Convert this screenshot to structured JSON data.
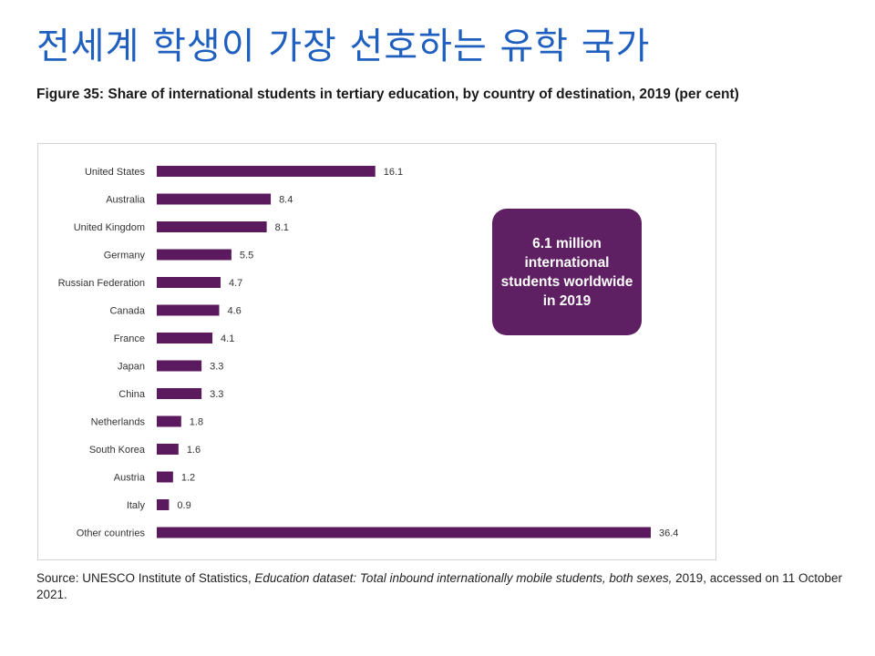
{
  "page": {
    "heading": "전세계 학생이 가장 선호하는 유학 국가"
  },
  "figure": {
    "title": "Figure 35: Share of international students in tertiary education, by country of destination, 2019 (per cent)"
  },
  "callout": {
    "text": "6.1 million international students worldwide in 2019"
  },
  "source": {
    "prefix": "Source: UNESCO Institute of Statistics, ",
    "dataset": "Education dataset: Total inbound internationally mobile students, both sexes,",
    "suffix": " 2019, accessed on 11 October 2021."
  },
  "colors": {
    "bar": "#5b1a5e",
    "callout": "#5e1f63",
    "heading": "#1f5fbf"
  },
  "chart_data": {
    "type": "bar",
    "orientation": "horizontal",
    "title": "Figure 35: Share of international students in tertiary education, by country of destination, 2019 (per cent)",
    "xlabel": "",
    "ylabel": "",
    "xlim": [
      0,
      36.4
    ],
    "grid": false,
    "categories": [
      "United States",
      "Australia",
      "United Kingdom",
      "Germany",
      "Russian Federation",
      "Canada",
      "France",
      "Japan",
      "China",
      "Netherlands",
      "South Korea",
      "Austria",
      "Italy",
      "Other countries"
    ],
    "values": [
      16.1,
      8.4,
      8.1,
      5.5,
      4.7,
      4.6,
      4.1,
      3.3,
      3.3,
      1.8,
      1.6,
      1.2,
      0.9,
      36.4
    ],
    "value_labels": [
      "16.1",
      "8.4",
      "8.1",
      "5.5",
      "4.7",
      "4.6",
      "4.1",
      "3.3",
      "3.3",
      "1.8",
      "1.6",
      "1.2",
      "0.9",
      "36.4"
    ],
    "annotations": [
      "6.1 million international students worldwide in 2019"
    ]
  }
}
